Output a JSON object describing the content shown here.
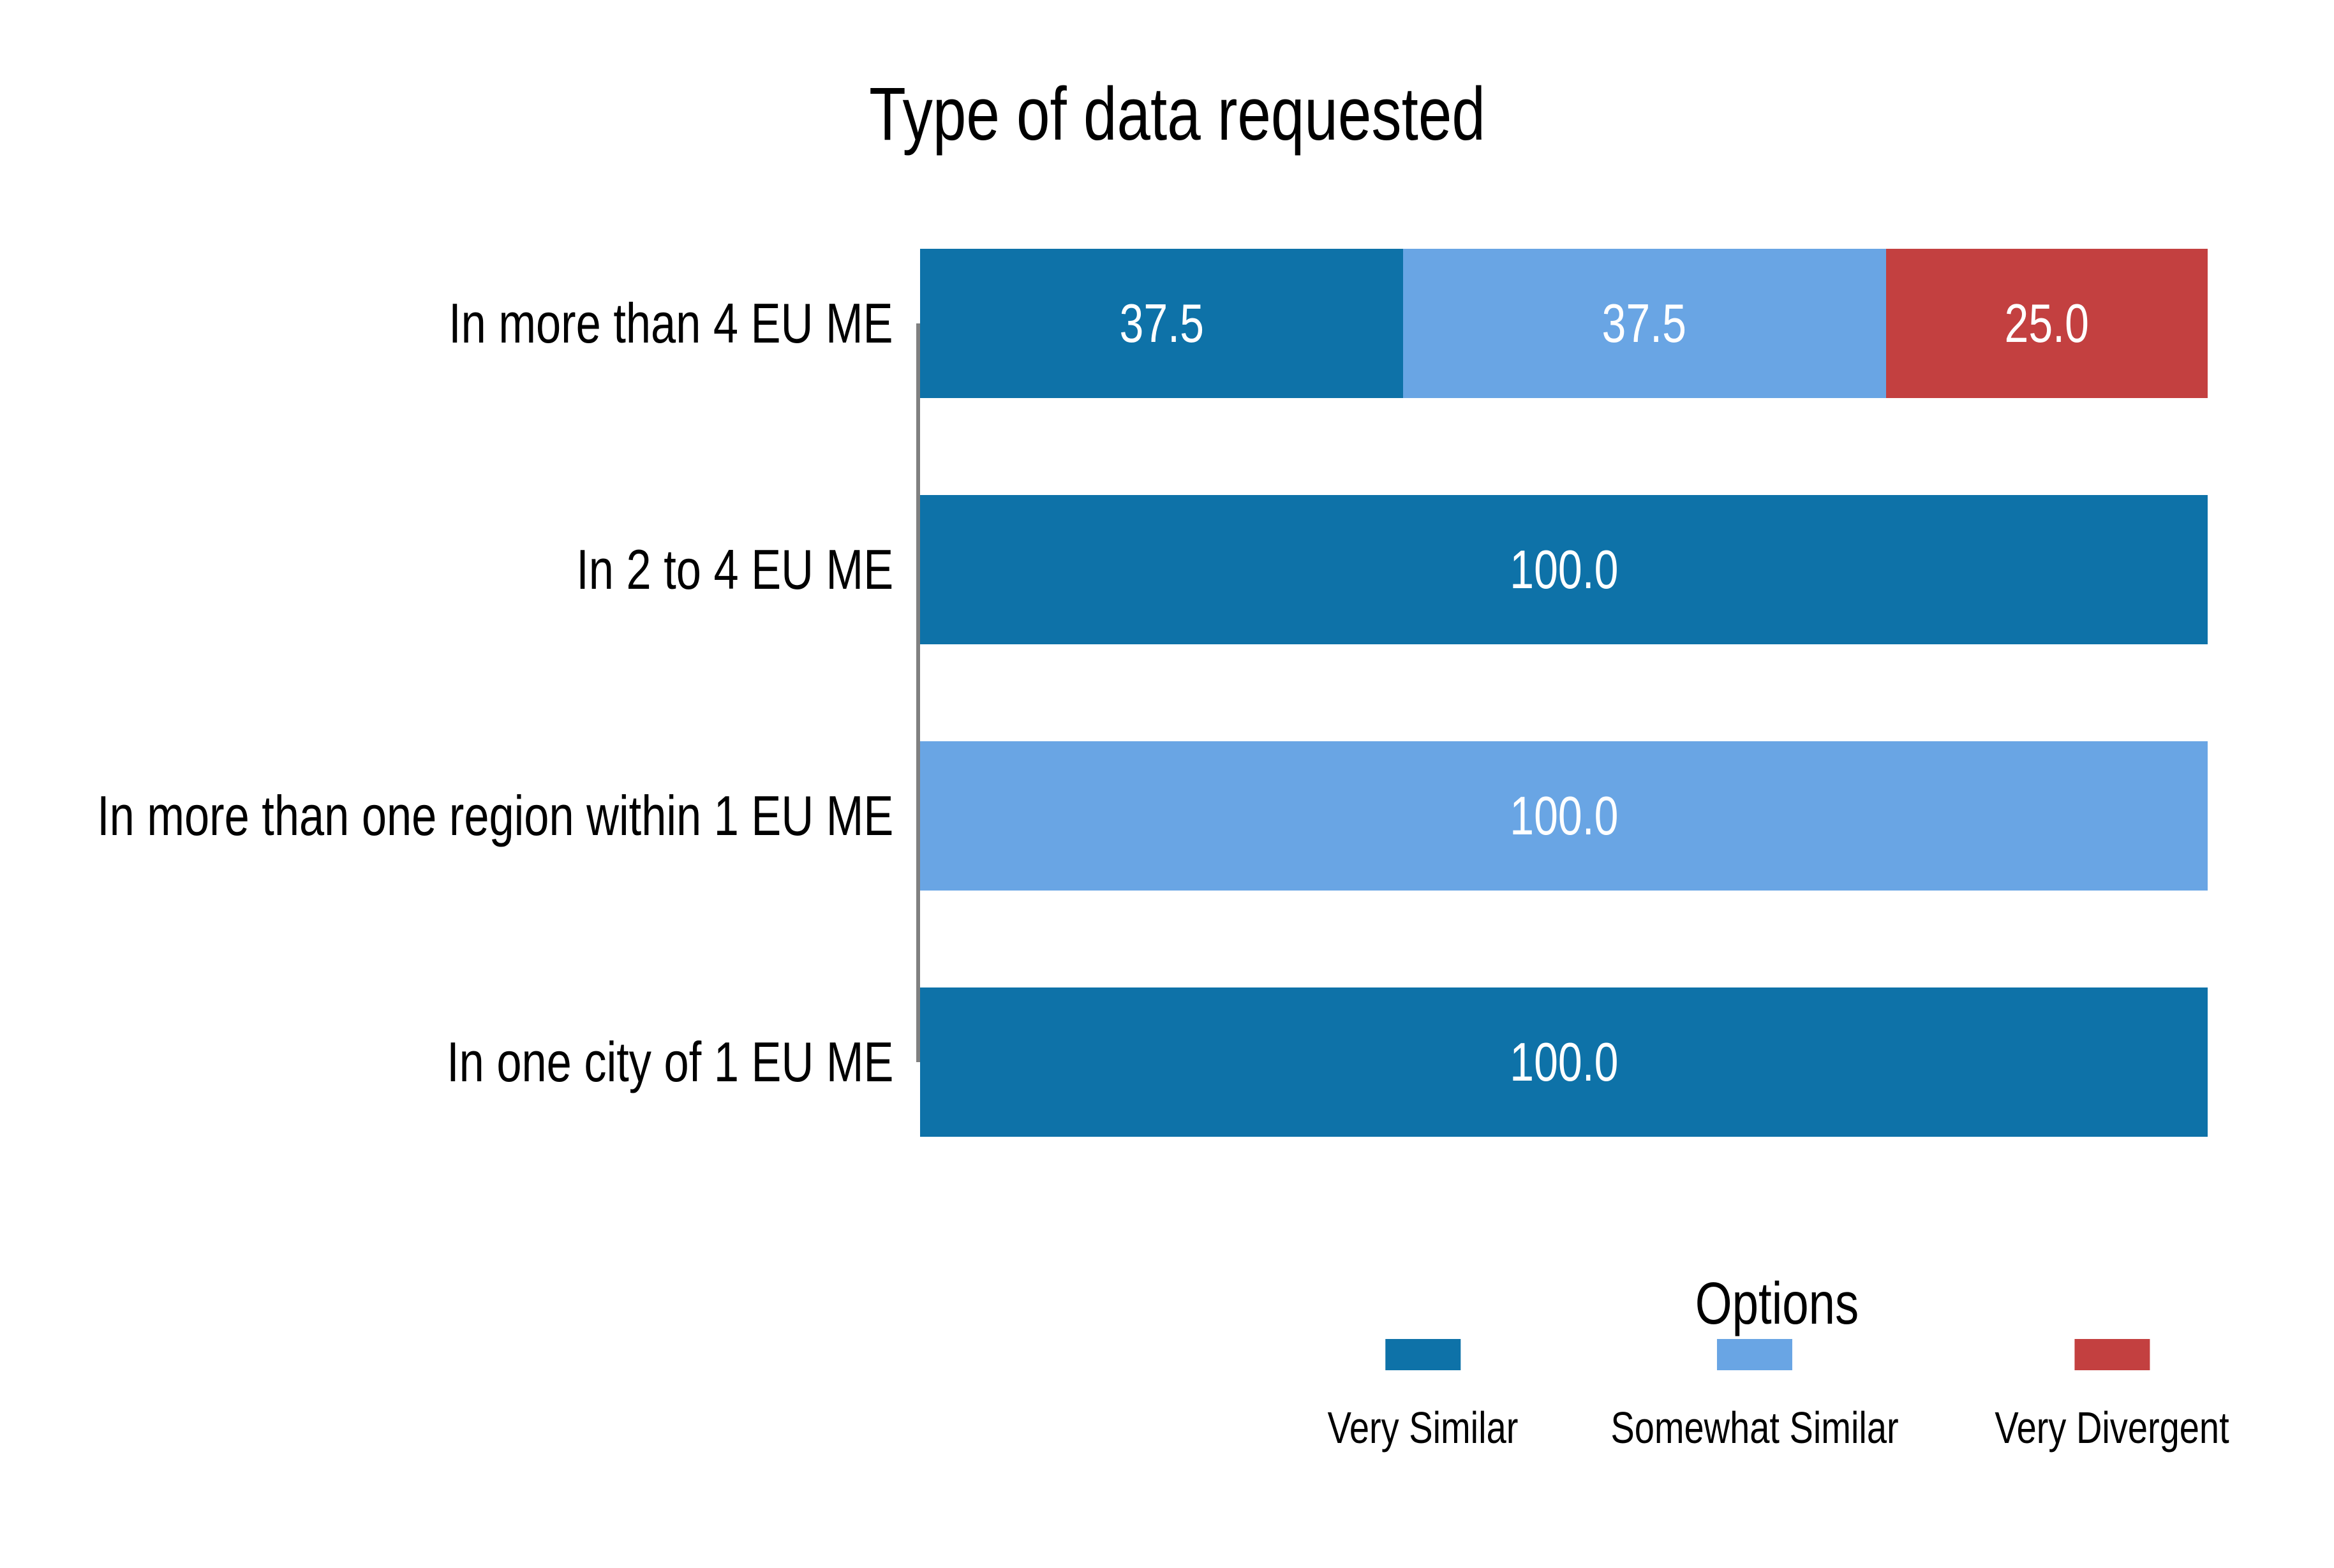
{
  "chart_data": {
    "type": "bar",
    "orientation": "horizontal",
    "stacked": true,
    "title": "Type of data requested",
    "categories": [
      "In more than 4 EU ME",
      "In 2 to 4 EU ME",
      "In more than one region within 1 EU ME",
      "In one city of 1 EU ME"
    ],
    "series": [
      {
        "name": "Very Similar",
        "color": "#0e72a8",
        "values": [
          37.5,
          100.0,
          0.0,
          100.0
        ]
      },
      {
        "name": "Somewhat Similar",
        "color": "#69a5e4",
        "values": [
          37.5,
          0.0,
          100.0,
          0.0
        ]
      },
      {
        "name": "Very Divergent",
        "color": "#c34040",
        "values": [
          25.0,
          0.0,
          0.0,
          0.0
        ]
      }
    ],
    "value_labels": [
      [
        "37.5",
        "37.5",
        "25.0"
      ],
      [
        "100.0"
      ],
      [
        "100.0"
      ],
      [
        "100.0"
      ]
    ],
    "value_decimals": 1,
    "xlim": [
      0,
      100
    ],
    "grid": false,
    "legend": {
      "title": "Options",
      "position": "bottom",
      "entries": [
        "Very Similar",
        "Somewhat Similar",
        "Very Divergent"
      ]
    },
    "colors": {
      "very_similar": "#0e72a8",
      "somewhat_similar": "#69a5e4",
      "very_divergent": "#c34040",
      "axis_line": "#808080",
      "value_label_text": "#ffffff",
      "text": "#000000",
      "background": "#ffffff"
    }
  }
}
